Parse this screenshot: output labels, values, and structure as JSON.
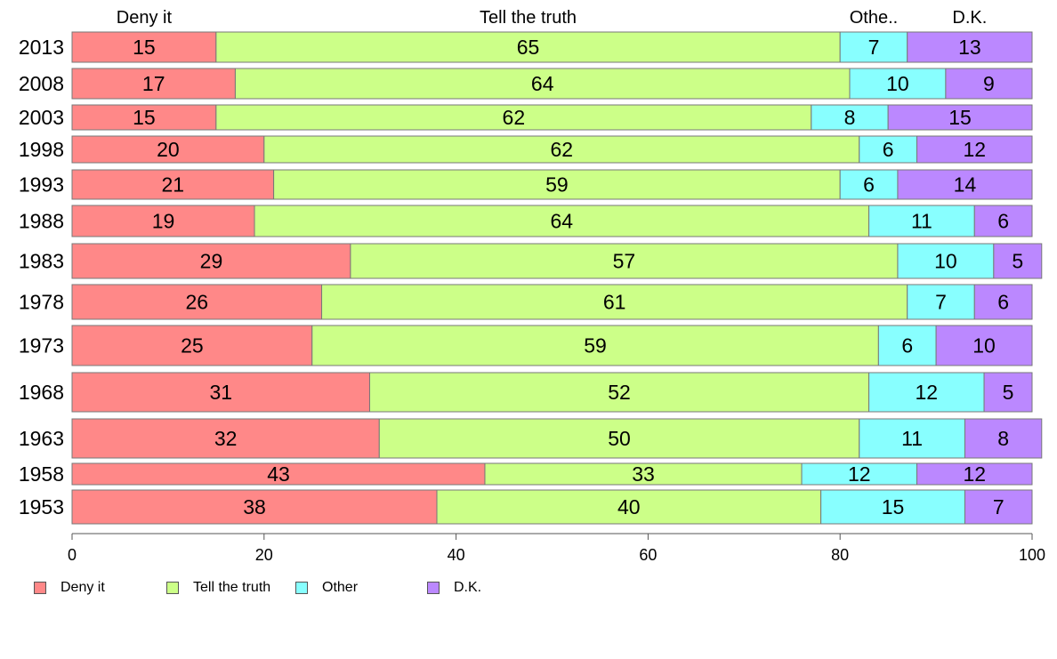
{
  "chart_data": {
    "type": "bar",
    "orientation": "horizontal",
    "stacked": true,
    "categories": [
      "2013",
      "2008",
      "2003",
      "1998",
      "1993",
      "1988",
      "1983",
      "1978",
      "1973",
      "1968",
      "1963",
      "1958",
      "1953"
    ],
    "series": [
      {
        "name": "Deny it",
        "header": "Deny it",
        "color": "#ff8888",
        "values": [
          15,
          17,
          15,
          20,
          21,
          19,
          29,
          26,
          25,
          31,
          32,
          43,
          38
        ]
      },
      {
        "name": "Tell the truth",
        "header": "Tell the truth",
        "color": "#ccff88",
        "values": [
          65,
          64,
          62,
          62,
          59,
          64,
          57,
          61,
          59,
          52,
          50,
          33,
          40
        ]
      },
      {
        "name": "Other",
        "header": "Othe..",
        "color": "#88ffff",
        "values": [
          7,
          10,
          8,
          6,
          6,
          11,
          10,
          7,
          6,
          12,
          11,
          12,
          15
        ]
      },
      {
        "name": "D.K.",
        "header": "D.K.",
        "color": "#bb88ff",
        "values": [
          13,
          9,
          15,
          12,
          14,
          6,
          5,
          6,
          10,
          5,
          8,
          12,
          7
        ]
      }
    ],
    "xlim": [
      0,
      100
    ],
    "xticks": [
      "0",
      "20",
      "40",
      "60",
      "80",
      "100"
    ],
    "legend_position": "bottom-left",
    "grid": false
  }
}
